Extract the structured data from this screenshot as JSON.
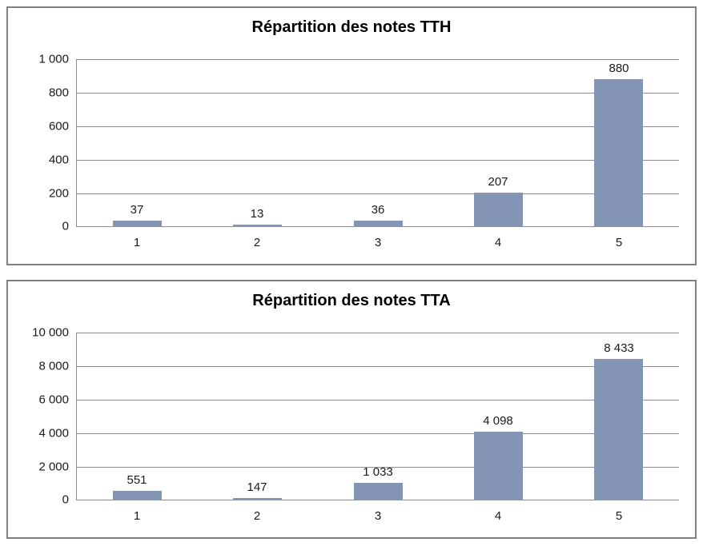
{
  "styles": {
    "background": "#FFFFFF",
    "bar_color": "#8494B4",
    "grid_color": "#8C8C8C",
    "frame_border_color": "#808080",
    "text_color": "#1A1A1A"
  },
  "chart_data": [
    {
      "type": "bar",
      "title": "Répartition des notes TTH",
      "categories": [
        "1",
        "2",
        "3",
        "4",
        "5"
      ],
      "values": [
        37,
        13,
        36,
        207,
        880
      ],
      "value_labels": [
        "37",
        "13",
        "36",
        "207",
        "880"
      ],
      "xlabel": "",
      "ylabel": "",
      "ylim": [
        0,
        1000
      ],
      "ytick_labels_bottom_to_top": [
        "0",
        "200",
        "400",
        "600",
        "800",
        "1 000"
      ],
      "grid": true,
      "legend": "none"
    },
    {
      "type": "bar",
      "title": "Répartition des notes TTA",
      "categories": [
        "1",
        "2",
        "3",
        "4",
        "5"
      ],
      "values": [
        551,
        147,
        1033,
        4098,
        8433
      ],
      "value_labels": [
        "551",
        "147",
        "1 033",
        "4 098",
        "8 433"
      ],
      "xlabel": "",
      "ylabel": "",
      "ylim": [
        0,
        10000
      ],
      "ytick_labels_bottom_to_top": [
        "0",
        "2 000",
        "4 000",
        "6 000",
        "8 000",
        "10 000"
      ],
      "grid": true,
      "legend": "none"
    }
  ]
}
